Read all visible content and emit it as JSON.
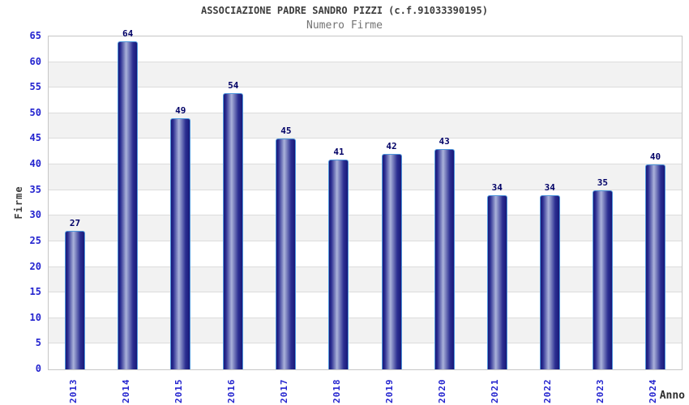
{
  "chart_data": {
    "type": "bar",
    "title": "ASSOCIAZIONE PADRE SANDRO PIZZI (c.f.91033390195)",
    "subtitle": "Numero Firme",
    "xlabel": "Anno",
    "ylabel": "Firme",
    "categories": [
      "2013",
      "2014",
      "2015",
      "2016",
      "2017",
      "2018",
      "2019",
      "2020",
      "2021",
      "2022",
      "2023",
      "2024"
    ],
    "values": [
      27,
      64,
      49,
      54,
      45,
      41,
      42,
      43,
      34,
      34,
      35,
      40
    ],
    "ylim": [
      0,
      65
    ],
    "y_tick_step": 5,
    "y_ticks": [
      0,
      5,
      10,
      15,
      20,
      25,
      30,
      35,
      40,
      45,
      50,
      55,
      60,
      65
    ],
    "grid": "horizontal-bands",
    "legend": "none",
    "colors": {
      "bar_dark": "#181878",
      "bar_light": "#aab2da",
      "bar_border": "#4f97dc",
      "tick_label": "#2424cf",
      "value_label": "#000066",
      "title": "#3d3d3d",
      "subtitle": "#737373",
      "axis_title": "#2e2e2e",
      "band_gray": "#f2f2f2",
      "band_white": "#ffffff",
      "gridline": "#dcdcdc",
      "plot_border": "#c6c6c6"
    }
  }
}
